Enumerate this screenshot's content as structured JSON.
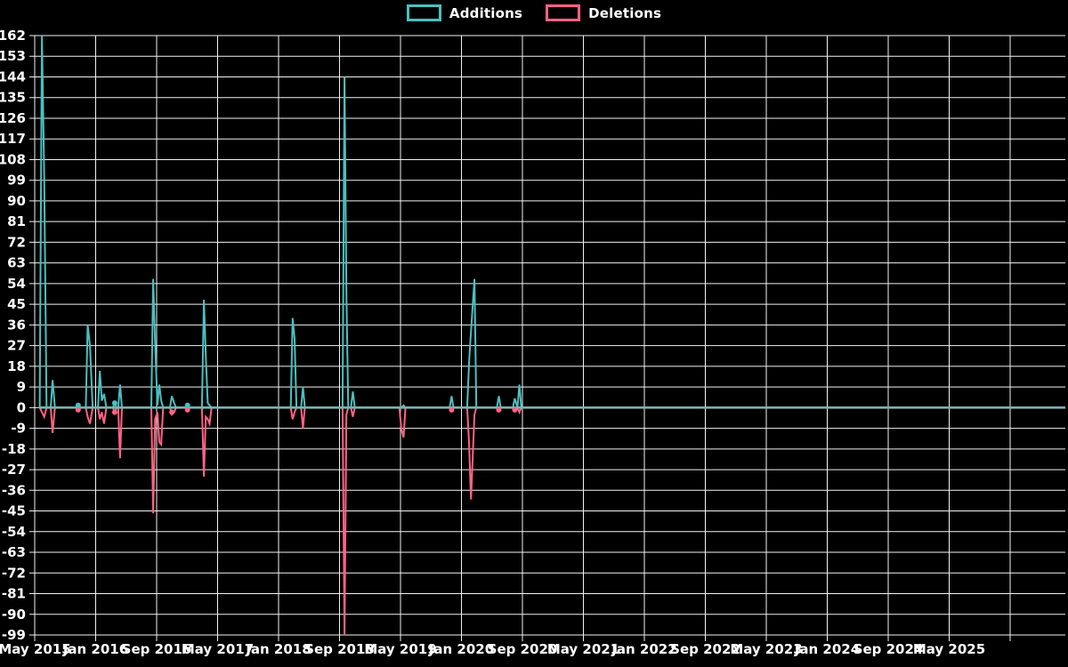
{
  "page": {
    "background": "#000000",
    "title": ""
  },
  "chart_data": {
    "type": "line",
    "title": "",
    "description": "Weekly additions and deletions activity line chart on black background",
    "legend_position": "top-center",
    "grid": true,
    "colors": {
      "additions": "#4bc0c0",
      "deletions": "#ff6384",
      "baseline_overlap": "#7fb0b0",
      "gridline": "#f2f2f2",
      "tick_text": "#ffffff",
      "background": "#000000"
    },
    "legend": [
      {
        "label": "Additions",
        "color": "#4bc0c0"
      },
      {
        "label": "Deletions",
        "color": "#ff6384"
      }
    ],
    "y_axis": {
      "min": -99,
      "max": 162,
      "step": 9,
      "tick_labels": [
        "162",
        "153",
        "144",
        "135",
        "126",
        "117",
        "108",
        "99",
        "90",
        "81",
        "72",
        "63",
        "54",
        "45",
        "36",
        "27",
        "18",
        "9",
        "0",
        "-9",
        "-18",
        "-27",
        "-36",
        "-45",
        "-54",
        "-63",
        "-72",
        "-81",
        "-90",
        "-99"
      ]
    },
    "x_axis": {
      "start": "May 2015",
      "end": "May 2025",
      "tick_interval_months": 8,
      "tick_labels": [
        "May 2015",
        "Jan 2016",
        "Sep 2016",
        "May 2017",
        "Jan 2018",
        "Sep 2018",
        "May 2019",
        "Jan 2020",
        "Sep 2020",
        "May 2021",
        "Jan 2022",
        "Sep 2022",
        "May 2023",
        "Jan 2024",
        "Sep 2024",
        "May 2025"
      ],
      "extra_unlabeled_gridlines": 1
    },
    "series": [
      {
        "name": "Additions",
        "color": "#4bc0c0",
        "points_months_from_may2015": [
          [
            0.65,
            0
          ],
          [
            0.95,
            162
          ],
          [
            1.25,
            100
          ],
          [
            1.55,
            0
          ],
          [
            2.1,
            0
          ],
          [
            2.35,
            12
          ],
          [
            2.65,
            0
          ],
          [
            5.45,
            0
          ],
          [
            5.7,
            1
          ],
          [
            5.95,
            0
          ],
          [
            6.7,
            0
          ],
          [
            6.95,
            36
          ],
          [
            7.25,
            27
          ],
          [
            7.6,
            0
          ],
          [
            8.3,
            0
          ],
          [
            8.55,
            16
          ],
          [
            8.8,
            3
          ],
          [
            9.1,
            6
          ],
          [
            9.4,
            0
          ],
          [
            10.25,
            0
          ],
          [
            10.5,
            2
          ],
          [
            10.75,
            0
          ],
          [
            10.95,
            0
          ],
          [
            11.2,
            10
          ],
          [
            11.45,
            0
          ],
          [
            15.3,
            0
          ],
          [
            15.55,
            56
          ],
          [
            15.8,
            28
          ],
          [
            16.1,
            1
          ],
          [
            16.35,
            10
          ],
          [
            16.6,
            3
          ],
          [
            16.85,
            0
          ],
          [
            17.75,
            0
          ],
          [
            18.0,
            5
          ],
          [
            18.3,
            2
          ],
          [
            18.55,
            0
          ],
          [
            19.8,
            0
          ],
          [
            20.05,
            1
          ],
          [
            20.3,
            0
          ],
          [
            21.95,
            0
          ],
          [
            22.2,
            47
          ],
          [
            22.45,
            23
          ],
          [
            22.7,
            2
          ],
          [
            22.95,
            1
          ],
          [
            23.2,
            0
          ],
          [
            33.6,
            0
          ],
          [
            33.85,
            39
          ],
          [
            34.1,
            30
          ],
          [
            34.35,
            0
          ],
          [
            34.95,
            0
          ],
          [
            35.2,
            9
          ],
          [
            35.45,
            0
          ],
          [
            40.4,
            0
          ],
          [
            40.65,
            144
          ],
          [
            40.9,
            50
          ],
          [
            41.15,
            0
          ],
          [
            41.5,
            0
          ],
          [
            41.75,
            7
          ],
          [
            42.0,
            0
          ],
          [
            47.85,
            0
          ],
          [
            48.1,
            0
          ],
          [
            48.4,
            1
          ],
          [
            48.65,
            0
          ],
          [
            54.45,
            0
          ],
          [
            54.7,
            5
          ],
          [
            54.95,
            0
          ],
          [
            56.75,
            0
          ],
          [
            57.0,
            20
          ],
          [
            57.25,
            33
          ],
          [
            57.7,
            56
          ],
          [
            57.95,
            0
          ],
          [
            60.65,
            0
          ],
          [
            60.9,
            5
          ],
          [
            61.15,
            0
          ],
          [
            62.75,
            0
          ],
          [
            63.0,
            4
          ],
          [
            63.35,
            0
          ],
          [
            63.6,
            10
          ],
          [
            63.85,
            0
          ],
          [
            135,
            0
          ]
        ]
      },
      {
        "name": "Deletions",
        "color": "#ff6384",
        "points_months_from_may2015": [
          [
            0.65,
            0
          ],
          [
            0.95,
            -2
          ],
          [
            1.25,
            -4
          ],
          [
            1.55,
            0
          ],
          [
            2.1,
            0
          ],
          [
            2.35,
            -11
          ],
          [
            2.65,
            0
          ],
          [
            5.45,
            0
          ],
          [
            5.7,
            -1
          ],
          [
            5.95,
            0
          ],
          [
            6.7,
            0
          ],
          [
            6.95,
            -4
          ],
          [
            7.25,
            -7
          ],
          [
            7.6,
            0
          ],
          [
            8.3,
            0
          ],
          [
            8.55,
            -5
          ],
          [
            8.8,
            -2
          ],
          [
            9.1,
            -7
          ],
          [
            9.4,
            0
          ],
          [
            10.25,
            0
          ],
          [
            10.5,
            -2
          ],
          [
            10.75,
            0
          ],
          [
            10.95,
            0
          ],
          [
            11.2,
            -22
          ],
          [
            11.45,
            0
          ],
          [
            15.3,
            0
          ],
          [
            15.55,
            -46
          ],
          [
            15.8,
            -5
          ],
          [
            16.1,
            -2
          ],
          [
            16.35,
            -15
          ],
          [
            16.6,
            -16
          ],
          [
            16.85,
            0
          ],
          [
            17.75,
            0
          ],
          [
            18.0,
            -3
          ],
          [
            18.3,
            -2
          ],
          [
            18.55,
            0
          ],
          [
            19.8,
            0
          ],
          [
            20.05,
            -1
          ],
          [
            20.3,
            0
          ],
          [
            21.95,
            0
          ],
          [
            22.2,
            -30
          ],
          [
            22.45,
            -4
          ],
          [
            22.7,
            -5
          ],
          [
            22.95,
            -7
          ],
          [
            23.2,
            0
          ],
          [
            33.6,
            0
          ],
          [
            33.85,
            -5
          ],
          [
            34.1,
            -2
          ],
          [
            34.35,
            0
          ],
          [
            34.95,
            0
          ],
          [
            35.2,
            -9
          ],
          [
            35.45,
            0
          ],
          [
            40.4,
            0
          ],
          [
            40.65,
            -99
          ],
          [
            40.9,
            -3
          ],
          [
            41.15,
            0
          ],
          [
            41.5,
            0
          ],
          [
            41.75,
            -4
          ],
          [
            42.0,
            0
          ],
          [
            47.85,
            0
          ],
          [
            48.1,
            -9
          ],
          [
            48.4,
            -13
          ],
          [
            48.65,
            0
          ],
          [
            54.45,
            0
          ],
          [
            54.7,
            -1
          ],
          [
            54.95,
            0
          ],
          [
            56.75,
            0
          ],
          [
            57.0,
            -16
          ],
          [
            57.25,
            -40
          ],
          [
            57.7,
            -3
          ],
          [
            57.95,
            0
          ],
          [
            60.65,
            0
          ],
          [
            60.9,
            -1
          ],
          [
            61.15,
            0
          ],
          [
            62.75,
            0
          ],
          [
            63.0,
            -1
          ],
          [
            63.35,
            0
          ],
          [
            63.6,
            -2
          ],
          [
            63.85,
            0
          ],
          [
            135,
            0
          ]
        ]
      }
    ],
    "point_dots": [
      {
        "series": 0,
        "m": 5.7,
        "v": 1
      },
      {
        "series": 1,
        "m": 5.7,
        "v": -1
      },
      {
        "series": 0,
        "m": 10.5,
        "v": 2
      },
      {
        "series": 1,
        "m": 10.5,
        "v": -2
      },
      {
        "series": 1,
        "m": 18.0,
        "v": -2
      },
      {
        "series": 0,
        "m": 20.05,
        "v": 1
      },
      {
        "series": 1,
        "m": 20.05,
        "v": -1
      },
      {
        "series": 1,
        "m": 54.7,
        "v": -1
      },
      {
        "series": 1,
        "m": 60.9,
        "v": -1
      },
      {
        "series": 1,
        "m": 63.0,
        "v": -1
      }
    ],
    "notable_points": [
      {
        "date": "Jun 2015",
        "additions": 162,
        "deletions": 2
      },
      {
        "date": "Jun 2015 (wk 2)",
        "additions": 100,
        "deletions": 4
      },
      {
        "date": "Jul 2015",
        "additions": 12,
        "deletions": 11
      },
      {
        "date": "Dec 2015",
        "additions": 36,
        "deletions": 7
      },
      {
        "date": "Feb 2016",
        "additions": 16,
        "deletions": 7
      },
      {
        "date": "Apr 2016",
        "additions": 10,
        "deletions": 22
      },
      {
        "date": "Oct 2016",
        "additions": 56,
        "deletions": 46
      },
      {
        "date": "Nov 2016",
        "additions": 10,
        "deletions": 16
      },
      {
        "date": "Mar 2017",
        "additions": 47,
        "deletions": 30
      },
      {
        "date": "Feb 2018",
        "additions": 39,
        "deletions": 9
      },
      {
        "date": "Oct 2018",
        "additions": 144,
        "deletions": 99
      },
      {
        "date": "May 2019",
        "additions": 0,
        "deletions": 13
      },
      {
        "date": "Dec 2019",
        "additions": 5,
        "deletions": 1
      },
      {
        "date": "Feb 2020",
        "additions": 56,
        "deletions": 40
      },
      {
        "date": "Jun 2020",
        "additions": 5,
        "deletions": 1
      },
      {
        "date": "Aug 2020",
        "additions": 10,
        "deletions": 2
      }
    ]
  }
}
